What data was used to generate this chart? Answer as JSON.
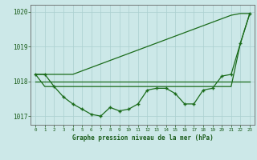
{
  "hours": [
    0,
    1,
    2,
    3,
    4,
    5,
    6,
    7,
    8,
    9,
    10,
    11,
    12,
    13,
    14,
    15,
    16,
    17,
    18,
    19,
    20,
    21,
    22,
    23
  ],
  "pressure_measured": [
    1018.2,
    1018.2,
    1017.85,
    1017.55,
    1017.35,
    1017.2,
    1017.05,
    1017.0,
    1017.25,
    1017.15,
    1017.2,
    1017.35,
    1017.75,
    1017.8,
    1017.8,
    1017.65,
    1017.35,
    1017.35,
    1017.75,
    1017.8,
    1018.15,
    1018.2,
    1019.1,
    1019.95
  ],
  "pressure_flat": [
    1018.0,
    1018.0,
    1018.0,
    1018.0,
    1018.0,
    1018.0,
    1018.0,
    1018.0,
    1018.0,
    1018.0,
    1018.0,
    1018.0,
    1018.0,
    1018.0,
    1018.0,
    1018.0,
    1018.0,
    1018.0,
    1018.0,
    1018.0,
    1018.0,
    1018.0,
    1018.0,
    1018.0
  ],
  "pressure_upper": [
    1018.2,
    1018.2,
    1018.2,
    1018.2,
    1018.2,
    1018.3,
    1018.4,
    1018.5,
    1018.6,
    1018.7,
    1018.8,
    1018.9,
    1019.0,
    1019.1,
    1019.2,
    1019.3,
    1019.4,
    1019.5,
    1019.6,
    1019.7,
    1019.8,
    1019.9,
    1019.95,
    1019.95
  ],
  "pressure_lower": [
    1018.2,
    1017.85,
    1017.85,
    1017.85,
    1017.85,
    1017.85,
    1017.85,
    1017.85,
    1017.85,
    1017.85,
    1017.85,
    1017.85,
    1017.85,
    1017.85,
    1017.85,
    1017.85,
    1017.85,
    1017.85,
    1017.85,
    1017.85,
    1017.85,
    1017.85,
    1019.1,
    1019.95
  ],
  "ylim": [
    1016.75,
    1020.2
  ],
  "yticks": [
    1017,
    1018,
    1019,
    1020
  ],
  "xlim": [
    -0.5,
    23.5
  ],
  "xlabel": "Graphe pression niveau de la mer (hPa)",
  "line_color": "#1a6b1a",
  "bg_color": "#cce8e8",
  "grid_color": "#aacfcf",
  "text_color": "#1a5c1a",
  "axis_color": "#666666"
}
